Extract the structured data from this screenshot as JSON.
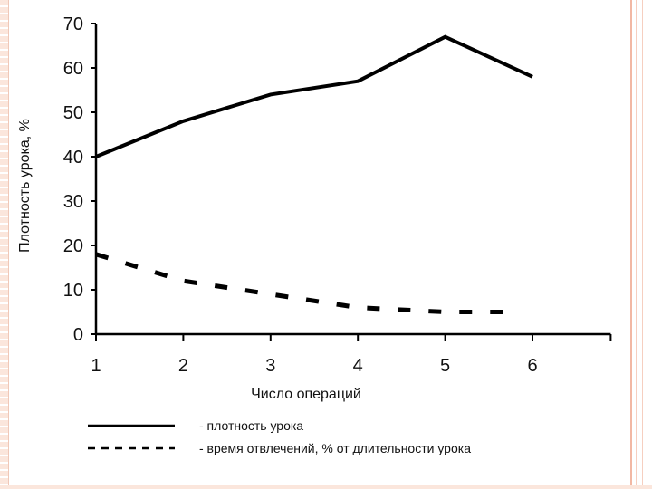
{
  "chart_data": {
    "type": "line",
    "x": [
      1,
      2,
      3,
      4,
      5,
      6
    ],
    "xlabel": "Число операций",
    "ylabel": "Плотность урока, %",
    "xlim": [
      1,
      7
    ],
    "ylim": [
      0,
      70
    ],
    "yticks": [
      "0",
      "10",
      "20",
      "30",
      "40",
      "50",
      "60",
      "70"
    ],
    "xticks": [
      "1",
      "2",
      "3",
      "4",
      "5",
      "6"
    ],
    "grid": false,
    "legend_position": "bottom",
    "series": [
      {
        "name": "- плотность урока",
        "style": "solid",
        "color": "#000000",
        "x": [
          1,
          2,
          3,
          4,
          5,
          6
        ],
        "values": [
          40,
          48,
          54,
          57,
          67,
          58
        ]
      },
      {
        "name": "- время отвлечений, % от длительности урока",
        "style": "dashed",
        "color": "#000000",
        "x": [
          1,
          2,
          3,
          4,
          5,
          5.8
        ],
        "values": [
          18,
          12,
          9,
          6,
          5,
          5
        ]
      }
    ]
  }
}
